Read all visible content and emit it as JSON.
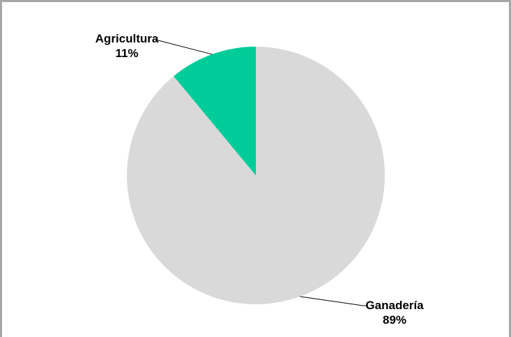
{
  "chart_data": {
    "type": "pie",
    "categories": [
      "Ganadería",
      "Agricultura"
    ],
    "values": [
      89,
      11
    ],
    "labels": [
      "89%",
      "11%"
    ],
    "colors": [
      "#d9d9d9",
      "#00cc99"
    ],
    "title": "",
    "legend": "none"
  }
}
